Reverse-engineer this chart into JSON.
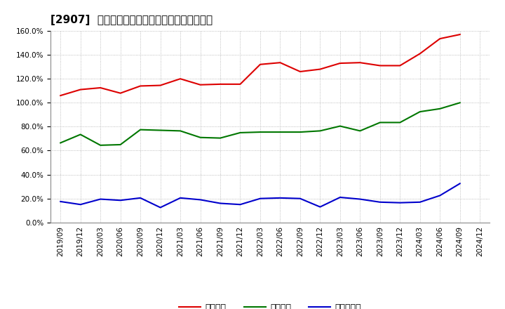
{
  "title": "[2907]  流動比率、当座比率、現預金比率の推移",
  "x_labels": [
    "2019/09",
    "2019/12",
    "2020/03",
    "2020/06",
    "2020/09",
    "2020/12",
    "2021/03",
    "2021/06",
    "2021/09",
    "2021/12",
    "2022/03",
    "2022/06",
    "2022/09",
    "2022/12",
    "2023/03",
    "2023/06",
    "2023/09",
    "2023/12",
    "2024/03",
    "2024/06",
    "2024/09",
    "2024/12"
  ],
  "ryudo": [
    106.0,
    111.0,
    112.5,
    108.0,
    114.0,
    114.5,
    120.0,
    115.0,
    115.5,
    115.5,
    132.0,
    133.5,
    126.0,
    128.0,
    133.0,
    133.5,
    131.0,
    131.0,
    141.0,
    153.5,
    157.0,
    null
  ],
  "toza": [
    66.5,
    73.5,
    64.5,
    65.0,
    77.5,
    77.0,
    76.5,
    71.0,
    70.5,
    75.0,
    75.5,
    75.5,
    75.5,
    76.5,
    80.5,
    76.5,
    83.5,
    83.5,
    92.5,
    95.0,
    100.0,
    null
  ],
  "genkin": [
    17.5,
    15.0,
    19.5,
    18.5,
    20.5,
    12.5,
    20.5,
    19.0,
    16.0,
    15.0,
    20.0,
    20.5,
    20.0,
    13.0,
    21.0,
    19.5,
    17.0,
    16.5,
    17.0,
    22.5,
    32.5,
    null
  ],
  "ryudo_color": "#dd0000",
  "toza_color": "#007700",
  "genkin_color": "#0000cc",
  "legend_labels": [
    "流動比率",
    "当座比率",
    "現預金比率"
  ],
  "ylim": [
    0,
    160
  ],
  "yticks": [
    0,
    20,
    40,
    60,
    80,
    100,
    120,
    140,
    160
  ],
  "background_color": "#ffffff",
  "grid_color": "#aaaaaa",
  "title_fontsize": 11,
  "axis_fontsize": 7.5,
  "legend_fontsize": 9
}
